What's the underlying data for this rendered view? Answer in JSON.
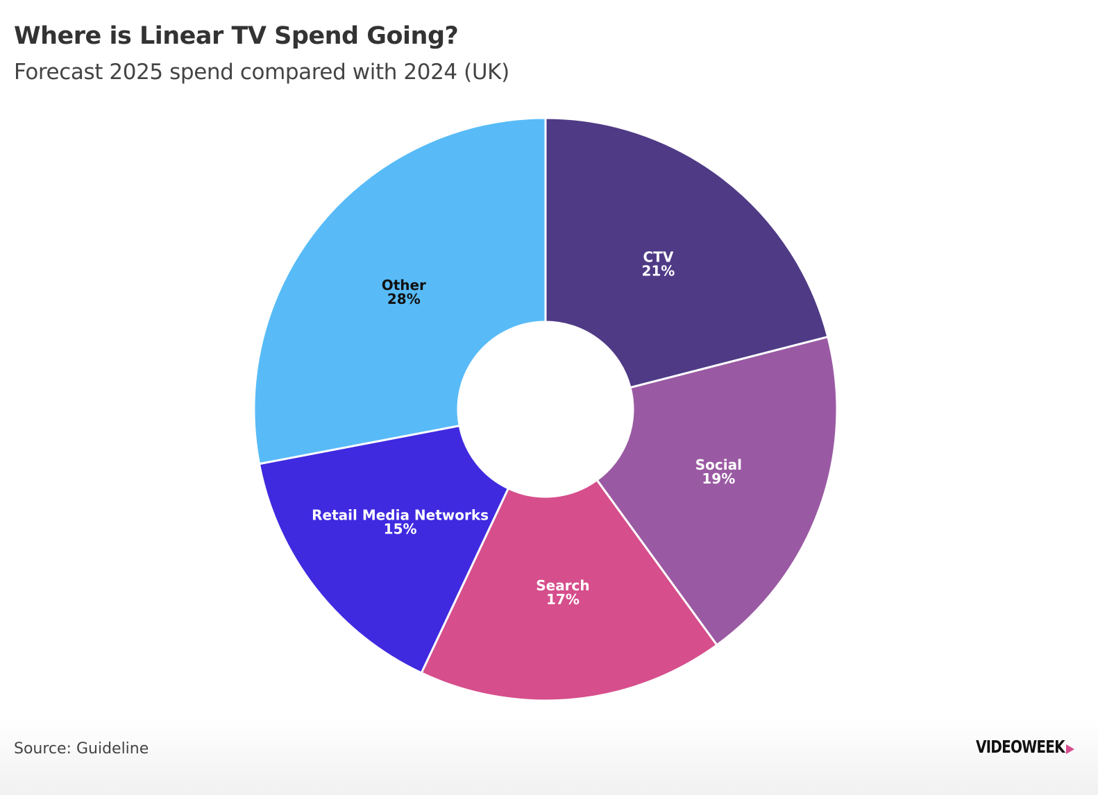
{
  "header": {
    "title": "Where is Linear TV Spend Going?",
    "subtitle": "Forecast 2025 spend compared with 2024 (UK)"
  },
  "footer": {
    "source": "Source: Guideline",
    "logo_text": "VIDEOWEEK",
    "logo_mark_color": "#d64c8d"
  },
  "chart_data": {
    "type": "pie",
    "variant": "donut",
    "title": "Where is Linear TV Spend Going?",
    "subtitle": "Forecast 2025 spend compared with 2024 (UK)",
    "start": "12 o'clock",
    "direction": "clockwise",
    "categories": [
      "CTV",
      "Social",
      "Search",
      "Retail Media Networks",
      "Other"
    ],
    "values": [
      21,
      19,
      17,
      15,
      28
    ],
    "value_labels": [
      "21%",
      "19%",
      "17%",
      "15%",
      "28%"
    ],
    "unit": "%",
    "colors": [
      "#4f3a86",
      "#9a5aa3",
      "#d64e8c",
      "#3f2ae0",
      "#58bbf8"
    ],
    "label_colors": [
      "#ffffff",
      "#ffffff",
      "#ffffff",
      "#ffffff",
      "#111111"
    ],
    "legend": "none",
    "source": "Source: Guideline"
  }
}
